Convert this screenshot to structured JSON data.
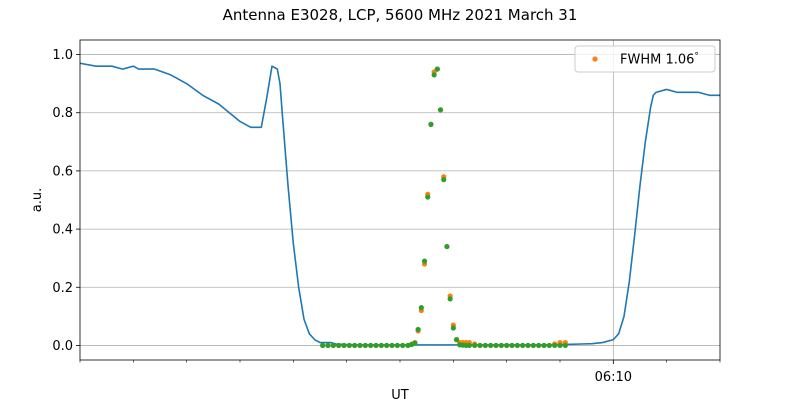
{
  "chart_data": {
    "type": "line",
    "title": "Antenna E3028, LCP, 5600 MHz 2021 March 31",
    "xlabel": "UT",
    "ylabel": "a.u.",
    "x_unit": "minutes UT",
    "xlim": [
      360,
      372
    ],
    "ylim": [
      -0.05,
      1.05
    ],
    "yticks": [
      0.0,
      0.2,
      0.4,
      0.6,
      0.8,
      1.0
    ],
    "ytick_labels": [
      "0.0",
      "0.2",
      "0.4",
      "0.6",
      "0.8",
      "1.0"
    ],
    "xticks": [
      370
    ],
    "xtick_labels": [
      "06:10"
    ],
    "x_minor_ticks": [
      360,
      361,
      362,
      363,
      364,
      365,
      366,
      367,
      368,
      369,
      371,
      372
    ],
    "grid": true,
    "legend": {
      "position": "top-right",
      "entries": [
        {
          "label": "FWHM 1.06$^\\circ$",
          "display": "FWHM 1.06",
          "suffix": "°",
          "color": "#ff7f0e"
        }
      ]
    },
    "series": [
      {
        "kind": "line",
        "color": "#1f77b4",
        "x": [
          360.0,
          360.3,
          360.6,
          360.8,
          361.0,
          361.1,
          361.4,
          361.7,
          361.8,
          362.0,
          362.3,
          362.6,
          362.8,
          363.0,
          363.2,
          363.4,
          363.5,
          363.6,
          363.7,
          363.75,
          363.8,
          363.9,
          364.0,
          364.1,
          364.2,
          364.3,
          364.4,
          364.5,
          364.6,
          364.7,
          364.8,
          365.0,
          365.2,
          365.4,
          365.6,
          365.8,
          366.0,
          366.2,
          366.4,
          366.6,
          366.8,
          367.0,
          367.2,
          367.4,
          367.6,
          367.8,
          368.0,
          368.2,
          368.4,
          368.6,
          368.8,
          369.0,
          369.2,
          369.4,
          369.6,
          369.8,
          370.0,
          370.1,
          370.2,
          370.3,
          370.4,
          370.5,
          370.6,
          370.7,
          370.75,
          370.8,
          371.0,
          371.2,
          371.4,
          371.6,
          371.8,
          372.0
        ],
        "y": [
          0.97,
          0.96,
          0.96,
          0.95,
          0.96,
          0.95,
          0.95,
          0.93,
          0.92,
          0.9,
          0.86,
          0.83,
          0.8,
          0.77,
          0.75,
          0.75,
          0.85,
          0.96,
          0.95,
          0.9,
          0.78,
          0.55,
          0.35,
          0.2,
          0.09,
          0.04,
          0.02,
          0.01,
          0.01,
          0.01,
          0.005,
          0.003,
          0.002,
          0.002,
          0.002,
          0.002,
          0.002,
          0.002,
          0.002,
          0.002,
          0.002,
          0.002,
          0.002,
          0.002,
          0.002,
          0.002,
          0.002,
          0.002,
          0.002,
          0.002,
          0.002,
          0.003,
          0.004,
          0.005,
          0.006,
          0.01,
          0.02,
          0.04,
          0.1,
          0.22,
          0.38,
          0.55,
          0.7,
          0.82,
          0.86,
          0.87,
          0.88,
          0.87,
          0.87,
          0.87,
          0.86,
          0.86
        ]
      },
      {
        "kind": "scatter",
        "label": "FWHM 1.06°",
        "color": "#ff7f0e",
        "x": [
          364.55,
          364.65,
          364.75,
          364.85,
          364.95,
          365.05,
          365.15,
          365.25,
          365.35,
          365.45,
          365.55,
          365.65,
          365.75,
          365.85,
          365.95,
          366.05,
          366.15,
          366.22,
          366.28,
          366.34,
          366.4,
          366.46,
          366.52,
          366.58,
          366.64,
          366.7,
          366.76,
          366.82,
          366.88,
          366.94,
          367.0,
          367.06,
          367.12,
          367.18,
          367.24,
          367.3,
          367.4,
          367.5,
          367.6,
          367.7,
          367.8,
          367.9,
          368.0,
          368.1,
          368.2,
          368.3,
          368.4,
          368.5,
          368.6,
          368.7,
          368.8,
          368.9,
          369.0,
          369.1
        ],
        "y": [
          0.0,
          0.0,
          0.0,
          0.0,
          0.0,
          0.0,
          0.0,
          0.0,
          0.0,
          0.0,
          0.0,
          0.0,
          0.0,
          0.0,
          0.0,
          0.0,
          0.0,
          0.005,
          0.01,
          0.05,
          0.12,
          0.28,
          0.52,
          0.76,
          0.94,
          0.95,
          0.81,
          0.58,
          0.34,
          0.17,
          0.07,
          0.02,
          0.01,
          0.01,
          0.01,
          0.01,
          0.005,
          0.0,
          0.0,
          0.0,
          0.0,
          0.0,
          0.0,
          0.0,
          0.0,
          0.0,
          0.0,
          0.0,
          0.0,
          0.0,
          0.0,
          0.005,
          0.01,
          0.01
        ]
      },
      {
        "kind": "scatter",
        "color": "#2ca02c",
        "x": [
          364.55,
          364.65,
          364.75,
          364.85,
          364.95,
          365.05,
          365.15,
          365.25,
          365.35,
          365.45,
          365.55,
          365.65,
          365.75,
          365.85,
          365.95,
          366.05,
          366.15,
          366.22,
          366.28,
          366.34,
          366.4,
          366.46,
          366.52,
          366.58,
          366.64,
          366.7,
          366.76,
          366.82,
          366.88,
          366.94,
          367.0,
          367.06,
          367.12,
          367.18,
          367.24,
          367.3,
          367.4,
          367.5,
          367.6,
          367.7,
          367.8,
          367.9,
          368.0,
          368.1,
          368.2,
          368.3,
          368.4,
          368.5,
          368.6,
          368.7,
          368.8,
          368.9,
          369.0,
          369.1
        ],
        "y": [
          0.0,
          0.0,
          0.0,
          0.0,
          0.0,
          0.0,
          0.0,
          0.0,
          0.0,
          0.0,
          0.0,
          0.0,
          0.0,
          0.0,
          0.0,
          0.0,
          0.0,
          0.003,
          0.008,
          0.055,
          0.13,
          0.29,
          0.51,
          0.76,
          0.93,
          0.95,
          0.81,
          0.57,
          0.34,
          0.16,
          0.06,
          0.02,
          0.002,
          0.001,
          0.0,
          0.0,
          0.0,
          0.0,
          0.0,
          0.0,
          0.0,
          0.0,
          0.0,
          0.0,
          0.0,
          0.0,
          0.0,
          0.0,
          0.0,
          0.0,
          0.0,
          0.0,
          0.0,
          0.0
        ]
      }
    ]
  }
}
